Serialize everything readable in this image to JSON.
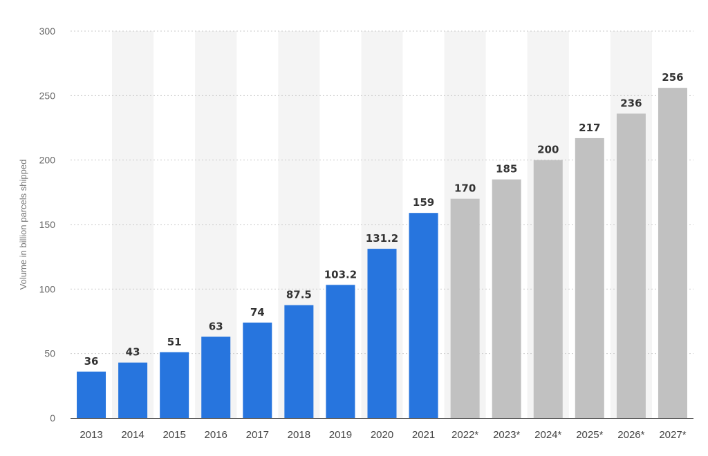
{
  "chart_data": {
    "type": "bar",
    "categories": [
      "2013",
      "2014",
      "2015",
      "2016",
      "2017",
      "2018",
      "2019",
      "2020",
      "2021",
      "2022*",
      "2023*",
      "2024*",
      "2025*",
      "2026*",
      "2027*"
    ],
    "values": [
      36,
      43,
      51,
      63,
      74,
      87.5,
      103.2,
      131.2,
      159,
      170,
      185,
      200,
      217,
      236,
      256
    ],
    "value_labels": [
      "36",
      "43",
      "51",
      "63",
      "74",
      "87.5",
      "103.2",
      "131.2",
      "159",
      "170",
      "185",
      "200",
      "217",
      "236",
      "256"
    ],
    "forecast": [
      false,
      false,
      false,
      false,
      false,
      false,
      false,
      false,
      false,
      true,
      true,
      true,
      true,
      true,
      true
    ],
    "ylabel": "Volume in billion parcels shipped",
    "xlabel": "",
    "ylim": [
      0,
      300
    ],
    "yticks": [
      0,
      50,
      100,
      150,
      200,
      250,
      300
    ],
    "grid": "horizontal dotted",
    "colors": {
      "actual": "#2775de",
      "forecast": "#c1c1c1",
      "band": "#f4f4f4",
      "grid": "#c8c8c8",
      "axis": "#333333"
    }
  }
}
